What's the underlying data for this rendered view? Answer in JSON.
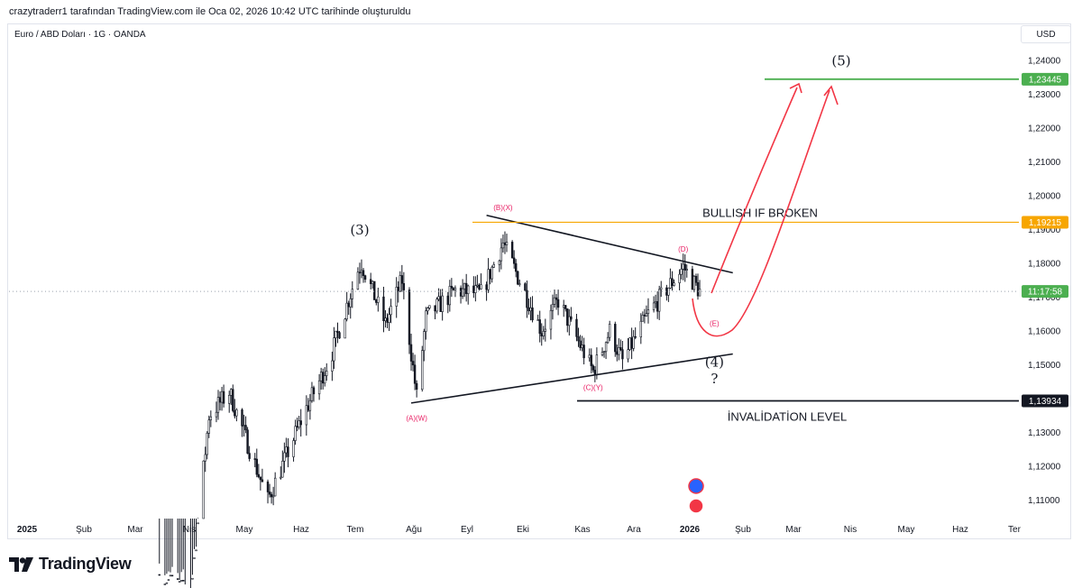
{
  "header": {
    "credit": "crazytraderr1 tarafından TradingView.com ile Oca 02, 2026 10:42 UTC tarihinde oluşturuldu"
  },
  "symbol": {
    "line": "Euro / ABD Doları · 1G · OANDA"
  },
  "currency": "USD",
  "brand": {
    "name": "TradingView"
  },
  "colors": {
    "up": "#131722",
    "down": "#131722",
    "target": "#4caf50",
    "breakout": "#f7a600",
    "invalidation": "#131722",
    "path": "#f23645",
    "wave_minor": "#e91e63"
  },
  "chart_data": {
    "type": "candlestick",
    "ylim": [
      1.1,
      1.245
    ],
    "y_ticks": [
      "1,24000",
      "1,23000",
      "1,22000",
      "1,21000",
      "1,20000",
      "1,19000",
      "1,18000",
      "1,17000",
      "1,16000",
      "1,15000",
      "1,14000",
      "1,13000",
      "1,12000",
      "1,11000"
    ],
    "x_ticks": [
      {
        "label": "2025",
        "bold": true
      },
      {
        "label": "Şub"
      },
      {
        "label": "Mar"
      },
      {
        "label": "Nis"
      },
      {
        "label": "May"
      },
      {
        "label": "Haz"
      },
      {
        "label": "Tem"
      },
      {
        "label": "Ağu"
      },
      {
        "label": "Eyl"
      },
      {
        "label": "Eki"
      },
      {
        "label": "Kas"
      },
      {
        "label": "Ara"
      },
      {
        "label": "2026",
        "bold": true
      },
      {
        "label": "Şub"
      },
      {
        "label": "Mar"
      },
      {
        "label": "Nis"
      },
      {
        "label": "May"
      },
      {
        "label": "Haz"
      },
      {
        "label": "Ter"
      }
    ],
    "price_levels": [
      {
        "name": "target",
        "value": 1.23445,
        "label": "1,23445",
        "color": "#4caf50"
      },
      {
        "name": "breakout",
        "value": 1.19215,
        "label": "1,19215",
        "color": "#f7a600",
        "annotation": "BULLISH IF BROKEN"
      },
      {
        "name": "invalidation",
        "value": 1.13934,
        "label": "1,13934",
        "color": "#131722",
        "annotation": "İNVALİDATİON LEVEL"
      }
    ],
    "countdown": "11:17:58",
    "last_price": 1.1717,
    "wave_labels": [
      {
        "text": "(3)",
        "kind": "major",
        "date": "2025-07-01",
        "price": 1.1885
      },
      {
        "text": "(A)(W)",
        "kind": "minor",
        "date": "2025-08-01",
        "price": 1.1335
      },
      {
        "text": "(B)(X)",
        "kind": "minor",
        "date": "2025-09-17",
        "price": 1.1958
      },
      {
        "text": "(C)(Y)",
        "kind": "minor",
        "date": "2025-11-05",
        "price": 1.1425
      },
      {
        "text": "(D)",
        "kind": "minor",
        "date": "2025-12-24",
        "price": 1.1835
      },
      {
        "text": "(E)",
        "kind": "minor",
        "date": "2026-01-10",
        "price": 1.1615
      },
      {
        "text": "(4)",
        "kind": "major",
        "date": "2026-01-10",
        "price": 1.1495
      },
      {
        "text": "?",
        "kind": "major",
        "date": "2026-01-10",
        "price": 1.1445
      },
      {
        "text": "(5)",
        "kind": "major",
        "date": "2026-03-20",
        "price": 1.2385
      }
    ],
    "trendlines": [
      {
        "name": "triangle-upper",
        "from": {
          "date": "2025-09-08",
          "price": 1.1942
        },
        "to": {
          "date": "2026-01-20",
          "price": 1.1772
        }
      },
      {
        "name": "triangle-lower",
        "from": {
          "date": "2025-07-29",
          "price": 1.1387
        },
        "to": {
          "date": "2026-01-20",
          "price": 1.1532
        }
      }
    ],
    "ohlc_daily_approx": [
      {
        "date": "2025-03-14",
        "close": 1.088
      },
      {
        "date": "2025-03-31",
        "close": 1.082
      },
      {
        "date": "2025-04-10",
        "close": 1.135
      },
      {
        "date": "2025-04-21",
        "close": 1.142
      },
      {
        "date": "2025-05-12",
        "close": 1.11
      },
      {
        "date": "2025-06-01",
        "close": 1.136
      },
      {
        "date": "2025-06-15",
        "close": 1.152
      },
      {
        "date": "2025-06-30",
        "close": 1.178
      },
      {
        "date": "2025-07-02",
        "close": 1.18
      },
      {
        "date": "2025-07-15",
        "close": 1.162
      },
      {
        "date": "2025-07-24",
        "close": 1.175
      },
      {
        "date": "2025-08-01",
        "close": 1.1405
      },
      {
        "date": "2025-08-06",
        "close": 1.164
      },
      {
        "date": "2025-08-22",
        "close": 1.172
      },
      {
        "date": "2025-09-05",
        "close": 1.171
      },
      {
        "date": "2025-09-17",
        "close": 1.186
      },
      {
        "date": "2025-10-08",
        "close": 1.16
      },
      {
        "date": "2025-10-17",
        "close": 1.169
      },
      {
        "date": "2025-11-05",
        "close": 1.148
      },
      {
        "date": "2025-11-14",
        "close": 1.16
      },
      {
        "date": "2025-11-21",
        "close": 1.151
      },
      {
        "date": "2025-12-05",
        "close": 1.165
      },
      {
        "date": "2025-12-24",
        "close": 1.179
      },
      {
        "date": "2026-01-02",
        "close": 1.1717
      }
    ]
  }
}
